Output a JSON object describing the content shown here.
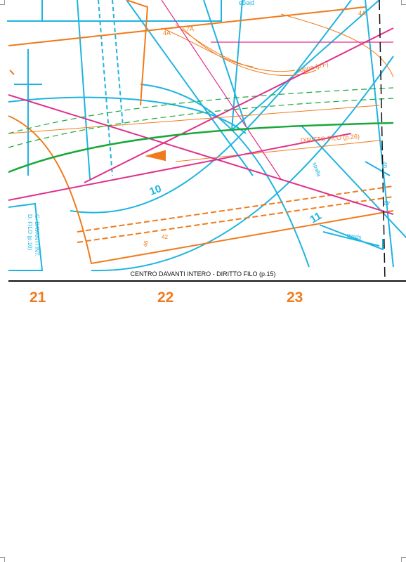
{
  "colors": {
    "cyan": "#1fb4e0",
    "orange": "#f07b1d",
    "magenta": "#e0308c",
    "green": "#18a83a",
    "black": "#111111"
  },
  "labels": {
    "top_left_4a": "4A",
    "top_7a": "7A",
    "top_right_4a": "4A",
    "toppa": "toppa (p.F)",
    "diritto_filo_26": "DIRITTO FILO (p.26)",
    "piece_10": "10",
    "piece_11": "11",
    "spalla_1": "spalla",
    "spalla_2": "spalla",
    "size_42": "42",
    "size_46": "46",
    "size_40_right": "40",
    "size_42_right": "42",
    "side_c": "C. DAVANTI INT.",
    "side_d": "D. FILO (p.10)",
    "top_text": "piega"
  },
  "caption": "CENTRO DAVANTI INTERO - DIRITTO FILO (p.15)",
  "page_numbers": [
    "21",
    "22",
    "23"
  ]
}
